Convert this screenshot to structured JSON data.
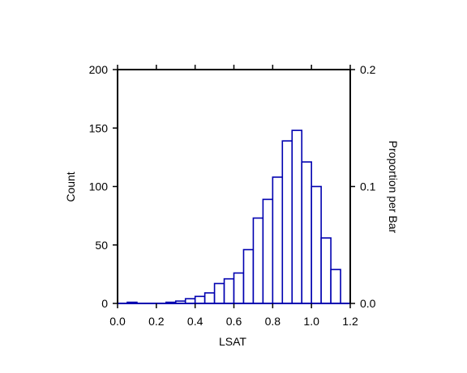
{
  "chart_data": {
    "type": "bar",
    "xlabel": "LSAT",
    "ylabel": "Count",
    "y2label": "Proportion per Bar",
    "xlim": [
      0.0,
      1.2
    ],
    "ylim": [
      0,
      200
    ],
    "y2lim": [
      0.0,
      0.2
    ],
    "x_ticks": [
      "0.0",
      "0.2",
      "0.4",
      "0.6",
      "0.8",
      "1.0",
      "1.2"
    ],
    "y_ticks": [
      "0",
      "50",
      "100",
      "150",
      "200"
    ],
    "y2_ticks": [
      "0.0",
      "0.1",
      "0.2"
    ],
    "bin_width": 0.05,
    "bins": [
      {
        "x0": 0.0,
        "x1": 0.05,
        "count": 0
      },
      {
        "x0": 0.05,
        "x1": 0.1,
        "count": 1
      },
      {
        "x0": 0.1,
        "x1": 0.15,
        "count": 0
      },
      {
        "x0": 0.15,
        "x1": 0.2,
        "count": 0
      },
      {
        "x0": 0.2,
        "x1": 0.25,
        "count": 0
      },
      {
        "x0": 0.25,
        "x1": 0.3,
        "count": 1
      },
      {
        "x0": 0.3,
        "x1": 0.35,
        "count": 2
      },
      {
        "x0": 0.35,
        "x1": 0.4,
        "count": 4
      },
      {
        "x0": 0.4,
        "x1": 0.45,
        "count": 6
      },
      {
        "x0": 0.45,
        "x1": 0.5,
        "count": 9
      },
      {
        "x0": 0.5,
        "x1": 0.55,
        "count": 17
      },
      {
        "x0": 0.55,
        "x1": 0.6,
        "count": 21
      },
      {
        "x0": 0.6,
        "x1": 0.65,
        "count": 26
      },
      {
        "x0": 0.65,
        "x1": 0.7,
        "count": 46
      },
      {
        "x0": 0.7,
        "x1": 0.75,
        "count": 73
      },
      {
        "x0": 0.75,
        "x1": 0.8,
        "count": 89
      },
      {
        "x0": 0.8,
        "x1": 0.85,
        "count": 108
      },
      {
        "x0": 0.85,
        "x1": 0.9,
        "count": 139
      },
      {
        "x0": 0.9,
        "x1": 0.95,
        "count": 148
      },
      {
        "x0": 0.95,
        "x1": 1.0,
        "count": 121
      },
      {
        "x0": 1.0,
        "x1": 1.05,
        "count": 100
      },
      {
        "x0": 1.05,
        "x1": 1.1,
        "count": 56
      },
      {
        "x0": 1.1,
        "x1": 1.15,
        "count": 29
      },
      {
        "x0": 1.15,
        "x1": 1.2,
        "count": 0
      }
    ],
    "colors": {
      "bar_stroke": "#0000b0",
      "bar_fill": "#ffffff",
      "axis": "#000000"
    },
    "grid": false
  }
}
